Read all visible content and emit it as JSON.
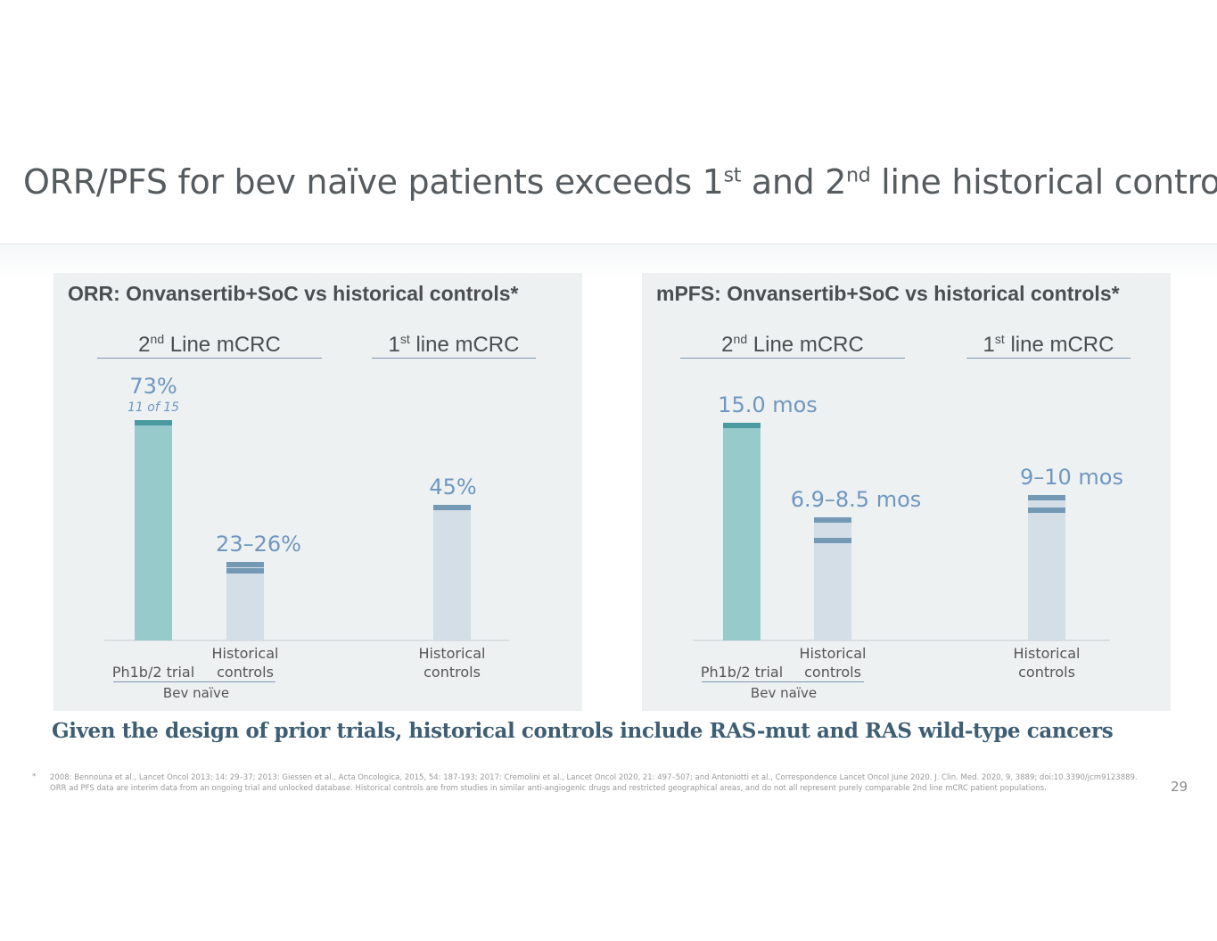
{
  "slide": {
    "title_pre": "ORR/PFS for bev naïve patients exceeds 1",
    "title_sup1": "st",
    "title_mid": " and 2",
    "title_sup2": "nd",
    "title_post": " line historical controls",
    "callout": "Given the design of prior trials, historical controls include RAS-mut and RAS wild-type cancers",
    "footnote_marker": "*",
    "footnote_line1": "2008: Bennouna et al., Lancet Oncol 2013; 14: 29–37; 2013: Giessen et al., Acta Oncologica, 2015, 54: 187-193; 2017: Cremolini et al., Lancet Oncol 2020, 21: 497–507; and Antoniotti et al., Correspondence Lancet Oncol June 2020. J. Clin. Med. 2020, 9, 3889; doi:10.3390/jcm9123889.",
    "footnote_line2": "ORR ad PFS data are interim data from an ongoing trial and unlocked database. Historical controls are from studies in similar anti-angiogenic drugs and restricted geographical areas, and do not all represent purely comparable 2nd line mCRC patient populations.",
    "page_number": "29"
  },
  "colors": {
    "primary_bar": "#96cacb",
    "primary_cap": "#4b9aa0",
    "hist_bar": "#d3dee7",
    "hist_cap": "#7399b5",
    "value_text": "#6f97c0"
  },
  "chart_data": [
    {
      "type": "bar",
      "title": "ORR: Onvansertib+SoC vs historical controls*",
      "group_2nd": {
        "pre": "2",
        "sup": "nd",
        "post": " Line mCRC"
      },
      "group_1st": {
        "pre": "1",
        "sup": "st",
        "post": " line mCRC"
      },
      "subgroup_label": "Bev naïve",
      "unit": "%",
      "ylim": [
        0,
        80
      ],
      "bars": [
        {
          "group": "2nd Line mCRC",
          "xlabel": [
            "Ph1b/2 trial"
          ],
          "value": 73,
          "label": "73%",
          "sublabel": "11 of 15",
          "kind": "primary"
        },
        {
          "group": "2nd Line mCRC",
          "xlabel": [
            "Historical",
            "controls"
          ],
          "range": [
            23,
            26
          ],
          "label": "23–26%",
          "kind": "historical"
        },
        {
          "group": "1st line mCRC",
          "xlabel": [
            "Historical",
            "controls"
          ],
          "value": 45,
          "label": "45%",
          "kind": "historical"
        }
      ]
    },
    {
      "type": "bar",
      "title": "mPFS: Onvansertib+SoC vs historical controls*",
      "group_2nd": {
        "pre": "2",
        "sup": "nd",
        "post": " Line mCRC"
      },
      "group_1st": {
        "pre": "1",
        "sup": "st",
        "post": " line mCRC"
      },
      "subgroup_label": "Bev naïve",
      "unit": "mos",
      "ylim": [
        0,
        16.5
      ],
      "bars": [
        {
          "group": "2nd Line mCRC",
          "xlabel": [
            "Ph1b/2 trial"
          ],
          "value": 15.0,
          "label": "15.0 mos",
          "kind": "primary"
        },
        {
          "group": "2nd Line mCRC",
          "xlabel": [
            "Historical",
            "controls"
          ],
          "range": [
            6.9,
            8.5
          ],
          "label": "6.9–8.5 mos",
          "kind": "historical"
        },
        {
          "group": "1st line mCRC",
          "xlabel": [
            "Historical",
            "controls"
          ],
          "range": [
            9,
            10
          ],
          "label": "9–10 mos",
          "kind": "historical"
        }
      ]
    }
  ]
}
